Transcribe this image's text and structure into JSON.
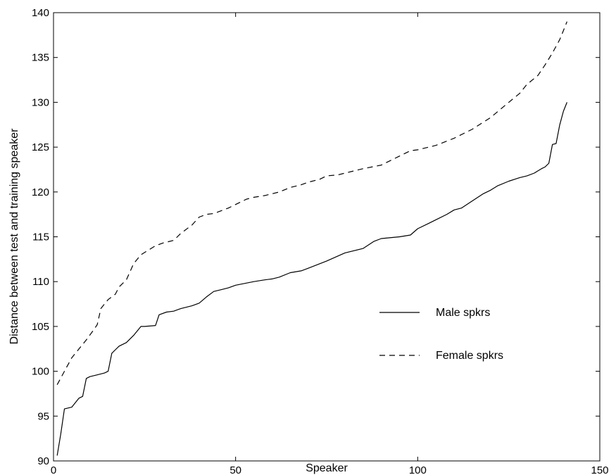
{
  "chart_data": {
    "type": "line",
    "title": "",
    "xlabel": "Speaker",
    "ylabel": "Distance between test and training speaker",
    "xlim": [
      0,
      150
    ],
    "ylim": [
      90,
      140
    ],
    "xticks": [
      0,
      50,
      100,
      150
    ],
    "yticks": [
      90,
      95,
      100,
      105,
      110,
      115,
      120,
      125,
      130,
      135,
      140
    ],
    "grid": false,
    "legend_position": "center-right",
    "series": [
      {
        "name": "Male spkrs",
        "style": "solid",
        "color": "#000000",
        "x": [
          1,
          2,
          3,
          4,
          5,
          6,
          7,
          8,
          9,
          10,
          12,
          14,
          15,
          16,
          17,
          18,
          20,
          22,
          24,
          25,
          28,
          29,
          31,
          33,
          35,
          38,
          40,
          42,
          44,
          46,
          48,
          50,
          55,
          58,
          60,
          62,
          65,
          68,
          70,
          75,
          80,
          85,
          88,
          90,
          95,
          98,
          100,
          103,
          105,
          108,
          110,
          112,
          115,
          118,
          120,
          122,
          125,
          128,
          130,
          132,
          134,
          135,
          136,
          137,
          138,
          139,
          140,
          141
        ],
        "y": [
          90.6,
          93.0,
          95.8,
          95.9,
          96.0,
          96.5,
          97.0,
          97.2,
          99.2,
          99.4,
          99.6,
          99.8,
          100.0,
          102.0,
          102.4,
          102.8,
          103.2,
          104.0,
          105.0,
          105.0,
          105.1,
          106.3,
          106.6,
          106.7,
          107.0,
          107.3,
          107.6,
          108.3,
          108.9,
          109.1,
          109.3,
          109.6,
          110.0,
          110.2,
          110.3,
          110.5,
          111.0,
          111.2,
          111.5,
          112.3,
          113.2,
          113.7,
          114.5,
          114.8,
          115.0,
          115.2,
          115.9,
          116.5,
          116.9,
          117.5,
          118.0,
          118.2,
          119.0,
          119.8,
          120.2,
          120.7,
          121.2,
          121.6,
          121.8,
          122.1,
          122.6,
          122.8,
          123.2,
          125.3,
          125.4,
          127.5,
          129.0,
          130.0
        ]
      },
      {
        "name": "Female spkrs",
        "style": "dashed",
        "color": "#000000",
        "x": [
          1,
          3,
          5,
          7,
          9,
          11,
          12,
          13,
          15,
          17,
          18,
          20,
          22,
          24,
          26,
          28,
          30,
          33,
          35,
          38,
          40,
          42,
          44,
          46,
          48,
          50,
          53,
          55,
          58,
          62,
          65,
          68,
          70,
          73,
          75,
          78,
          82,
          85,
          90,
          95,
          98,
          100,
          105,
          110,
          115,
          120,
          125,
          128,
          130,
          133,
          135,
          137,
          139,
          140,
          141
        ],
        "y": [
          98.5,
          100.0,
          101.5,
          102.5,
          103.5,
          104.6,
          105.2,
          107.0,
          108.0,
          108.6,
          109.4,
          110.2,
          112.0,
          113.0,
          113.5,
          114.0,
          114.3,
          114.6,
          115.4,
          116.3,
          117.2,
          117.5,
          117.6,
          117.9,
          118.2,
          118.6,
          119.2,
          119.4,
          119.6,
          120.0,
          120.5,
          120.8,
          121.1,
          121.4,
          121.8,
          121.9,
          122.3,
          122.6,
          123.0,
          124.0,
          124.6,
          124.7,
          125.2,
          126.0,
          127.0,
          128.3,
          130.0,
          131.0,
          132.0,
          133.0,
          134.2,
          135.5,
          137.0,
          138.0,
          139.0
        ]
      }
    ]
  }
}
